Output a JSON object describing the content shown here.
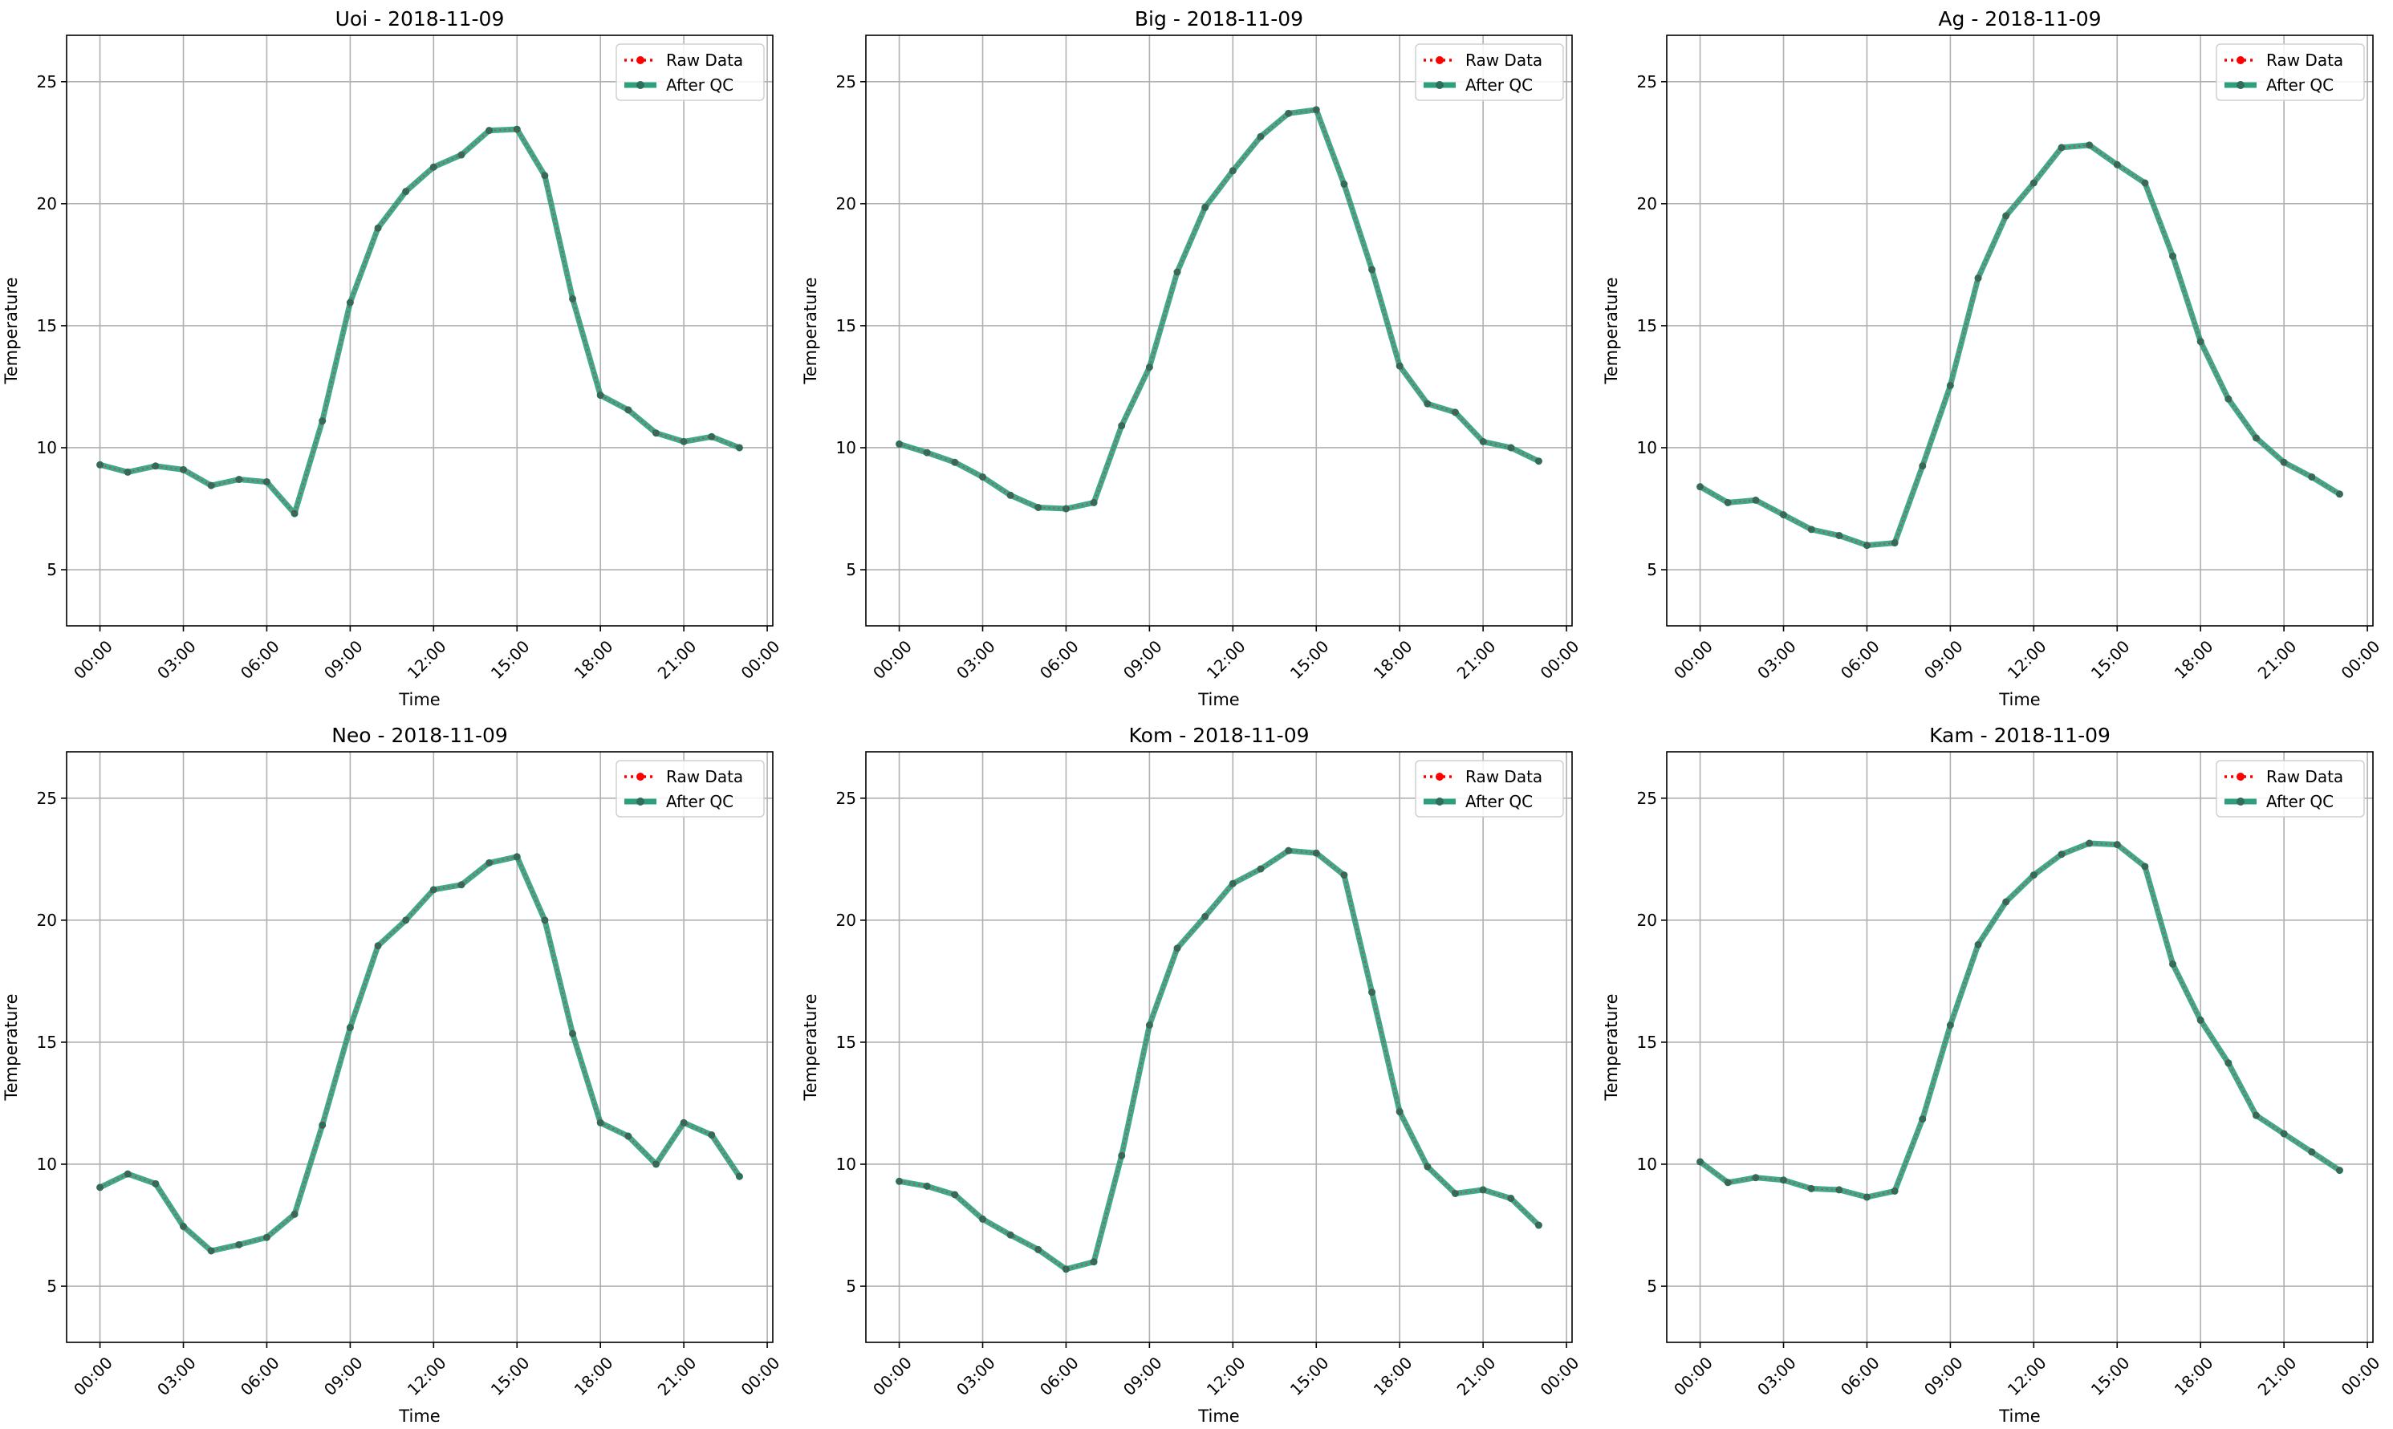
{
  "figure": {
    "colors": {
      "raw": "#ff0000",
      "qc": "#2e9e7e",
      "qc_marker": "#2f6e58",
      "grid": "#b0b0b0"
    },
    "legend_position": "upper right",
    "grid": true
  },
  "chart_data": [
    {
      "type": "line",
      "title": "Uoi - 2018-11-09",
      "xlabel": "Time",
      "ylabel": "Temperature",
      "x": [
        "00:00",
        "01:00",
        "02:00",
        "03:00",
        "04:00",
        "05:00",
        "06:00",
        "07:00",
        "08:00",
        "09:00",
        "10:00",
        "11:00",
        "12:00",
        "13:00",
        "14:00",
        "15:00",
        "16:00",
        "17:00",
        "18:00",
        "19:00",
        "20:00",
        "21:00",
        "22:00",
        "23:00"
      ],
      "xticks": [
        "00:00",
        "03:00",
        "06:00",
        "09:00",
        "12:00",
        "15:00",
        "18:00",
        "21:00",
        "00:00"
      ],
      "yticks": [
        5,
        10,
        15,
        20,
        25
      ],
      "ylim": [
        2.7,
        26.9
      ],
      "xlim_hours": [
        -1.2,
        24.2
      ],
      "legend": [
        "Raw Data",
        "After QC"
      ],
      "series": [
        {
          "name": "Raw Data",
          "values": [
            9.3,
            9.0,
            9.25,
            9.1,
            8.45,
            8.7,
            8.6,
            7.3,
            11.1,
            15.95,
            19.0,
            20.5,
            21.5,
            22.0,
            23.0,
            23.05,
            21.15,
            16.1,
            12.15,
            11.55,
            10.6,
            10.25,
            10.45,
            10.0
          ]
        },
        {
          "name": "After QC",
          "values": [
            9.3,
            9.0,
            9.25,
            9.1,
            8.45,
            8.7,
            8.6,
            7.3,
            11.1,
            15.95,
            19.0,
            20.5,
            21.5,
            22.0,
            23.0,
            23.05,
            21.15,
            16.1,
            12.15,
            11.55,
            10.6,
            10.25,
            10.45,
            10.0
          ]
        }
      ]
    },
    {
      "type": "line",
      "title": "Big - 2018-11-09",
      "xlabel": "Time",
      "ylabel": "Temperature",
      "x": [
        "00:00",
        "01:00",
        "02:00",
        "03:00",
        "04:00",
        "05:00",
        "06:00",
        "07:00",
        "08:00",
        "09:00",
        "10:00",
        "11:00",
        "12:00",
        "13:00",
        "14:00",
        "15:00",
        "16:00",
        "17:00",
        "18:00",
        "19:00",
        "20:00",
        "21:00",
        "22:00",
        "23:00"
      ],
      "xticks": [
        "00:00",
        "03:00",
        "06:00",
        "09:00",
        "12:00",
        "15:00",
        "18:00",
        "21:00",
        "00:00"
      ],
      "yticks": [
        5,
        10,
        15,
        20,
        25
      ],
      "ylim": [
        2.7,
        26.9
      ],
      "xlim_hours": [
        -1.2,
        24.2
      ],
      "legend": [
        "Raw Data",
        "After QC"
      ],
      "series": [
        {
          "name": "Raw Data",
          "values": [
            10.15,
            9.8,
            9.4,
            8.8,
            8.05,
            7.55,
            7.5,
            7.75,
            10.9,
            13.3,
            17.2,
            19.85,
            21.35,
            22.75,
            23.7,
            23.85,
            20.8,
            17.3,
            13.35,
            11.8,
            11.45,
            10.25,
            10.0,
            9.45
          ]
        },
        {
          "name": "After QC",
          "values": [
            10.15,
            9.8,
            9.4,
            8.8,
            8.05,
            7.55,
            7.5,
            7.75,
            10.9,
            13.3,
            17.2,
            19.85,
            21.35,
            22.75,
            23.7,
            23.85,
            20.8,
            17.3,
            13.35,
            11.8,
            11.45,
            10.25,
            10.0,
            9.45
          ]
        }
      ]
    },
    {
      "type": "line",
      "title": "Ag - 2018-11-09",
      "xlabel": "Time",
      "ylabel": "Temperature",
      "x": [
        "00:00",
        "01:00",
        "02:00",
        "03:00",
        "04:00",
        "05:00",
        "06:00",
        "07:00",
        "08:00",
        "09:00",
        "10:00",
        "11:00",
        "12:00",
        "13:00",
        "14:00",
        "15:00",
        "16:00",
        "17:00",
        "18:00",
        "19:00",
        "20:00",
        "21:00",
        "22:00",
        "23:00"
      ],
      "xticks": [
        "00:00",
        "03:00",
        "06:00",
        "09:00",
        "12:00",
        "15:00",
        "18:00",
        "21:00",
        "00:00"
      ],
      "yticks": [
        5,
        10,
        15,
        20,
        25
      ],
      "ylim": [
        2.7,
        26.9
      ],
      "xlim_hours": [
        -1.2,
        24.2
      ],
      "legend": [
        "Raw Data",
        "After QC"
      ],
      "series": [
        {
          "name": "Raw Data",
          "values": [
            8.4,
            7.75,
            7.85,
            7.25,
            6.65,
            6.4,
            6.0,
            6.1,
            9.25,
            12.55,
            16.95,
            19.5,
            20.85,
            22.3,
            22.4,
            21.6,
            20.85,
            17.85,
            14.35,
            12.0,
            10.4,
            9.4,
            8.8,
            8.1
          ]
        },
        {
          "name": "After QC",
          "values": [
            8.4,
            7.75,
            7.85,
            7.25,
            6.65,
            6.4,
            6.0,
            6.1,
            9.25,
            12.55,
            16.95,
            19.5,
            20.85,
            22.3,
            22.4,
            21.6,
            20.85,
            17.85,
            14.35,
            12.0,
            10.4,
            9.4,
            8.8,
            8.1
          ]
        }
      ]
    },
    {
      "type": "line",
      "title": "Neo - 2018-11-09",
      "xlabel": "Time",
      "ylabel": "Temperature",
      "x": [
        "00:00",
        "01:00",
        "02:00",
        "03:00",
        "04:00",
        "05:00",
        "06:00",
        "07:00",
        "08:00",
        "09:00",
        "10:00",
        "11:00",
        "12:00",
        "13:00",
        "14:00",
        "15:00",
        "16:00",
        "17:00",
        "18:00",
        "19:00",
        "20:00",
        "21:00",
        "22:00",
        "23:00"
      ],
      "xticks": [
        "00:00",
        "03:00",
        "06:00",
        "09:00",
        "12:00",
        "15:00",
        "18:00",
        "21:00",
        "00:00"
      ],
      "yticks": [
        5,
        10,
        15,
        20,
        25
      ],
      "ylim": [
        2.7,
        26.9
      ],
      "xlim_hours": [
        -1.2,
        24.2
      ],
      "legend": [
        "Raw Data",
        "After QC"
      ],
      "series": [
        {
          "name": "Raw Data",
          "values": [
            9.05,
            9.6,
            9.2,
            7.45,
            6.45,
            6.7,
            7.0,
            7.95,
            11.6,
            15.6,
            18.95,
            20.0,
            21.25,
            21.45,
            22.35,
            22.6,
            20.0,
            15.35,
            11.7,
            11.15,
            10.0,
            11.7,
            11.2,
            9.5
          ]
        },
        {
          "name": "After QC",
          "values": [
            9.05,
            9.6,
            9.2,
            7.45,
            6.45,
            6.7,
            7.0,
            7.95,
            11.6,
            15.6,
            18.95,
            20.0,
            21.25,
            21.45,
            22.35,
            22.6,
            20.0,
            15.35,
            11.7,
            11.15,
            10.0,
            11.7,
            11.2,
            9.5
          ]
        }
      ]
    },
    {
      "type": "line",
      "title": "Kom - 2018-11-09",
      "xlabel": "Time",
      "ylabel": "Temperature",
      "x": [
        "00:00",
        "01:00",
        "02:00",
        "03:00",
        "04:00",
        "05:00",
        "06:00",
        "07:00",
        "08:00",
        "09:00",
        "10:00",
        "11:00",
        "12:00",
        "13:00",
        "14:00",
        "15:00",
        "16:00",
        "17:00",
        "18:00",
        "19:00",
        "20:00",
        "21:00",
        "22:00",
        "23:00"
      ],
      "xticks": [
        "00:00",
        "03:00",
        "06:00",
        "09:00",
        "12:00",
        "15:00",
        "18:00",
        "21:00",
        "00:00"
      ],
      "yticks": [
        5,
        10,
        15,
        20,
        25
      ],
      "ylim": [
        2.7,
        26.9
      ],
      "xlim_hours": [
        -1.2,
        24.2
      ],
      "legend": [
        "Raw Data",
        "After QC"
      ],
      "series": [
        {
          "name": "Raw Data",
          "values": [
            9.3,
            9.1,
            8.75,
            7.75,
            7.1,
            6.5,
            5.7,
            6.0,
            10.35,
            15.7,
            18.85,
            20.15,
            21.5,
            22.1,
            22.85,
            22.75,
            21.85,
            17.05,
            12.15,
            9.9,
            8.8,
            8.95,
            8.6,
            7.5
          ]
        },
        {
          "name": "After QC",
          "values": [
            9.3,
            9.1,
            8.75,
            7.75,
            7.1,
            6.5,
            5.7,
            6.0,
            10.35,
            15.7,
            18.85,
            20.15,
            21.5,
            22.1,
            22.85,
            22.75,
            21.85,
            17.05,
            12.15,
            9.9,
            8.8,
            8.95,
            8.6,
            7.5
          ]
        }
      ]
    },
    {
      "type": "line",
      "title": "Kam - 2018-11-09",
      "xlabel": "Time",
      "ylabel": "Temperature",
      "x": [
        "00:00",
        "01:00",
        "02:00",
        "03:00",
        "04:00",
        "05:00",
        "06:00",
        "07:00",
        "08:00",
        "09:00",
        "10:00",
        "11:00",
        "12:00",
        "13:00",
        "14:00",
        "15:00",
        "16:00",
        "17:00",
        "18:00",
        "19:00",
        "20:00",
        "21:00",
        "22:00",
        "23:00"
      ],
      "xticks": [
        "00:00",
        "03:00",
        "06:00",
        "09:00",
        "12:00",
        "15:00",
        "18:00",
        "21:00",
        "00:00"
      ],
      "yticks": [
        5,
        10,
        15,
        20,
        25
      ],
      "ylim": [
        2.7,
        26.9
      ],
      "xlim_hours": [
        -1.2,
        24.2
      ],
      "legend": [
        "Raw Data",
        "After QC"
      ],
      "series": [
        {
          "name": "Raw Data",
          "values": [
            10.1,
            9.25,
            9.45,
            9.35,
            9.0,
            8.95,
            8.65,
            8.9,
            11.85,
            15.7,
            19.0,
            20.75,
            21.85,
            22.7,
            23.15,
            23.1,
            22.2,
            18.2,
            15.9,
            14.15,
            12.0,
            11.25,
            10.5,
            9.75
          ]
        },
        {
          "name": "After QC",
          "values": [
            10.1,
            9.25,
            9.45,
            9.35,
            9.0,
            8.95,
            8.65,
            8.9,
            11.85,
            15.7,
            19.0,
            20.75,
            21.85,
            22.7,
            23.15,
            23.1,
            22.2,
            18.2,
            15.9,
            14.15,
            12.0,
            11.25,
            10.5,
            9.75
          ]
        }
      ]
    }
  ]
}
